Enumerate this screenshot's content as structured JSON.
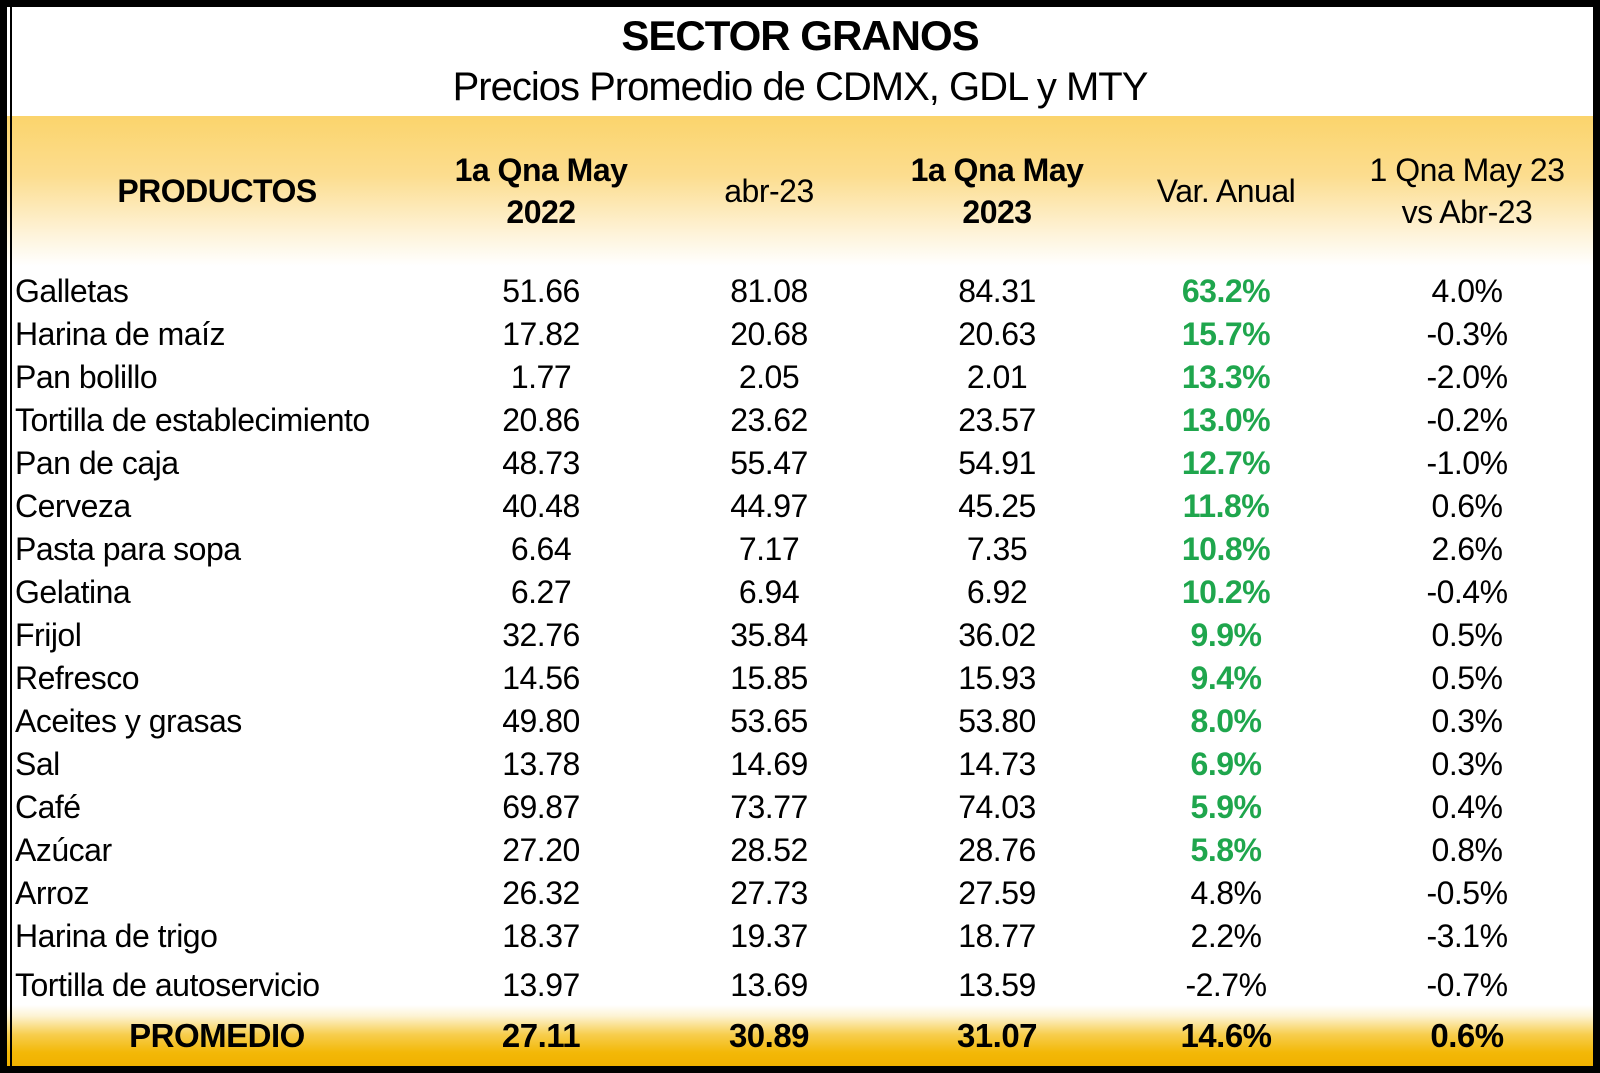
{
  "title": "SECTOR GRANOS",
  "subtitle": "Precios Promedio de CDMX, GDL y MTY",
  "colors": {
    "header_gold": "#fbd46c",
    "footer_gold": "#f1b100",
    "positive_green": "#1fa64d",
    "text_black": "#000000",
    "border_black": "#000000"
  },
  "chart_data": {
    "type": "table",
    "title": "SECTOR GRANOS",
    "subtitle": "Precios Promedio de CDMX, GDL y MTY",
    "columns": {
      "productos": "PRODUCTOS",
      "may2022_line1": "1a Qna May",
      "may2022_line2": "2022",
      "abr23": "abr-23",
      "may2023_line1": "1a Qna May",
      "may2023_line2": "2023",
      "var_anual": "Var. Anual",
      "var_qna_line1": "1 Qna May 23",
      "var_qna_line2": "vs Abr-23"
    },
    "rows": [
      {
        "product": "Galletas",
        "may2022": "51.66",
        "abr23": "81.08",
        "may2023": "84.31",
        "var_anual": "63.2%",
        "var_qna": "4.0%",
        "green": true
      },
      {
        "product": "Harina de maíz",
        "may2022": "17.82",
        "abr23": "20.68",
        "may2023": "20.63",
        "var_anual": "15.7%",
        "var_qna": "-0.3%",
        "green": true
      },
      {
        "product": "Pan bolillo",
        "may2022": "1.77",
        "abr23": "2.05",
        "may2023": "2.01",
        "var_anual": "13.3%",
        "var_qna": "-2.0%",
        "green": true
      },
      {
        "product": "Tortilla de establecimiento",
        "may2022": "20.86",
        "abr23": "23.62",
        "may2023": "23.57",
        "var_anual": "13.0%",
        "var_qna": "-0.2%",
        "green": true
      },
      {
        "product": "Pan de caja",
        "may2022": "48.73",
        "abr23": "55.47",
        "may2023": "54.91",
        "var_anual": "12.7%",
        "var_qna": "-1.0%",
        "green": true
      },
      {
        "product": "Cerveza",
        "may2022": "40.48",
        "abr23": "44.97",
        "may2023": "45.25",
        "var_anual": "11.8%",
        "var_qna": "0.6%",
        "green": true
      },
      {
        "product": "Pasta para sopa",
        "may2022": "6.64",
        "abr23": "7.17",
        "may2023": "7.35",
        "var_anual": "10.8%",
        "var_qna": "2.6%",
        "green": true
      },
      {
        "product": "Gelatina",
        "may2022": "6.27",
        "abr23": "6.94",
        "may2023": "6.92",
        "var_anual": "10.2%",
        "var_qna": "-0.4%",
        "green": true
      },
      {
        "product": "Frijol",
        "may2022": "32.76",
        "abr23": "35.84",
        "may2023": "36.02",
        "var_anual": "9.9%",
        "var_qna": "0.5%",
        "green": true
      },
      {
        "product": "Refresco",
        "may2022": "14.56",
        "abr23": "15.85",
        "may2023": "15.93",
        "var_anual": "9.4%",
        "var_qna": "0.5%",
        "green": true
      },
      {
        "product": "Aceites y grasas",
        "may2022": "49.80",
        "abr23": "53.65",
        "may2023": "53.80",
        "var_anual": "8.0%",
        "var_qna": "0.3%",
        "green": true
      },
      {
        "product": "Sal",
        "may2022": "13.78",
        "abr23": "14.69",
        "may2023": "14.73",
        "var_anual": "6.9%",
        "var_qna": "0.3%",
        "green": true
      },
      {
        "product": "Café",
        "may2022": "69.87",
        "abr23": "73.77",
        "may2023": "74.03",
        "var_anual": "5.9%",
        "var_qna": "0.4%",
        "green": true
      },
      {
        "product": "Azúcar",
        "may2022": "27.20",
        "abr23": "28.52",
        "may2023": "28.76",
        "var_anual": "5.8%",
        "var_qna": "0.8%",
        "green": true
      },
      {
        "product": "Arroz",
        "may2022": "26.32",
        "abr23": "27.73",
        "may2023": "27.59",
        "var_anual": "4.8%",
        "var_qna": "-0.5%",
        "green": false
      },
      {
        "product": "Harina de trigo",
        "may2022": "18.37",
        "abr23": "19.37",
        "may2023": "18.77",
        "var_anual": "2.2%",
        "var_qna": "-3.1%",
        "green": false
      },
      {
        "product": "Tortilla de autoservicio",
        "may2022": "13.97",
        "abr23": "13.69",
        "may2023": "13.59",
        "var_anual": "-2.7%",
        "var_qna": "-0.7%",
        "green": false
      }
    ],
    "footer": {
      "label": "PROMEDIO",
      "may2022": "27.11",
      "abr23": "30.89",
      "may2023": "31.07",
      "var_anual": "14.6%",
      "var_qna": "0.6%"
    }
  }
}
